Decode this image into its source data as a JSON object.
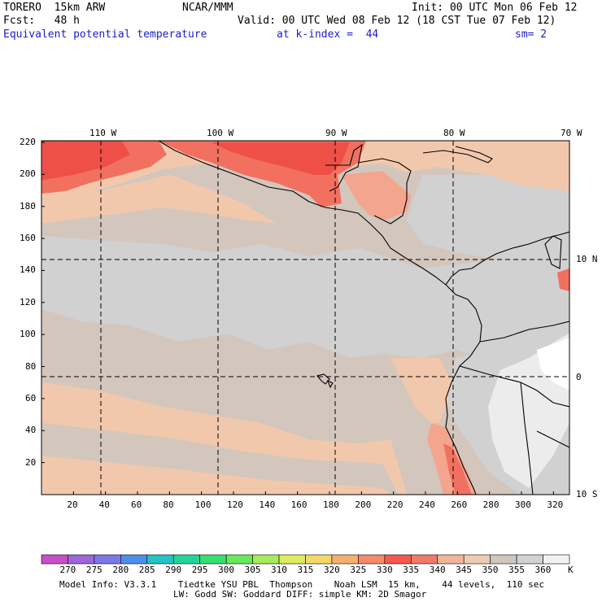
{
  "header": {
    "model": "TORERO  15km ARW",
    "center": "NCAR/MMM",
    "init": "Init: 00 UTC Mon 06 Feb 12",
    "fcst": "Fcst:   48 h",
    "valid": "Valid: 00 UTC Wed 08 Feb 12 (18 CST Tue 07 Feb 12)",
    "field": "Equivalent potential temperature",
    "level": "at k-index =  44",
    "smooth": "sm= 2"
  },
  "map": {
    "lon_labels": [
      "110 W",
      "100 W",
      "90 W",
      "80 W",
      "70 W"
    ],
    "lat_labels": [
      "10 N",
      "0",
      "10 S"
    ],
    "x_ticks": [
      "20",
      "40",
      "60",
      "80",
      "100",
      "120",
      "140",
      "160",
      "180",
      "200",
      "220",
      "240",
      "260",
      "280",
      "300",
      "320"
    ],
    "y_ticks": [
      "220",
      "200",
      "180",
      "160",
      "140",
      "120",
      "100",
      "80",
      "60",
      "40",
      "20"
    ]
  },
  "colorbar": {
    "unit": "K",
    "labels": [
      "270",
      "275",
      "280",
      "285",
      "290",
      "295",
      "300",
      "305",
      "310",
      "315",
      "320",
      "325",
      "330",
      "335",
      "340",
      "345",
      "350",
      "355",
      "360"
    ],
    "colors": [
      "#c84fc8",
      "#9e66d8",
      "#7c78e6",
      "#4e8fea",
      "#22c4c4",
      "#22d49a",
      "#36e070",
      "#6ae85c",
      "#a6ec5a",
      "#dcec5c",
      "#f4d868",
      "#f4b070",
      "#f48a6a",
      "#f4584e",
      "#f07a6a",
      "#f2b49c",
      "#eccdb4",
      "#cfc6bc",
      "#d2d2d2",
      "#f2f2f2"
    ]
  },
  "footer": {
    "line1": "Model Info: V3.3.1    Tiedtke YSU PBL  Thompson    Noah LSM  15 km,    44 levels,  110 sec",
    "line2": "LW: Godd SW: Goddard DIFF: simple KM: 2D Smagor"
  },
  "colors": {
    "peach": "#f2c8ad",
    "tan": "#d2c4bc",
    "gray": "#d1d1d1",
    "light": "#ececec",
    "white": "#ffffff",
    "salmon": "#f4a58e",
    "coral": "#f27060",
    "red": "#ee5048"
  }
}
